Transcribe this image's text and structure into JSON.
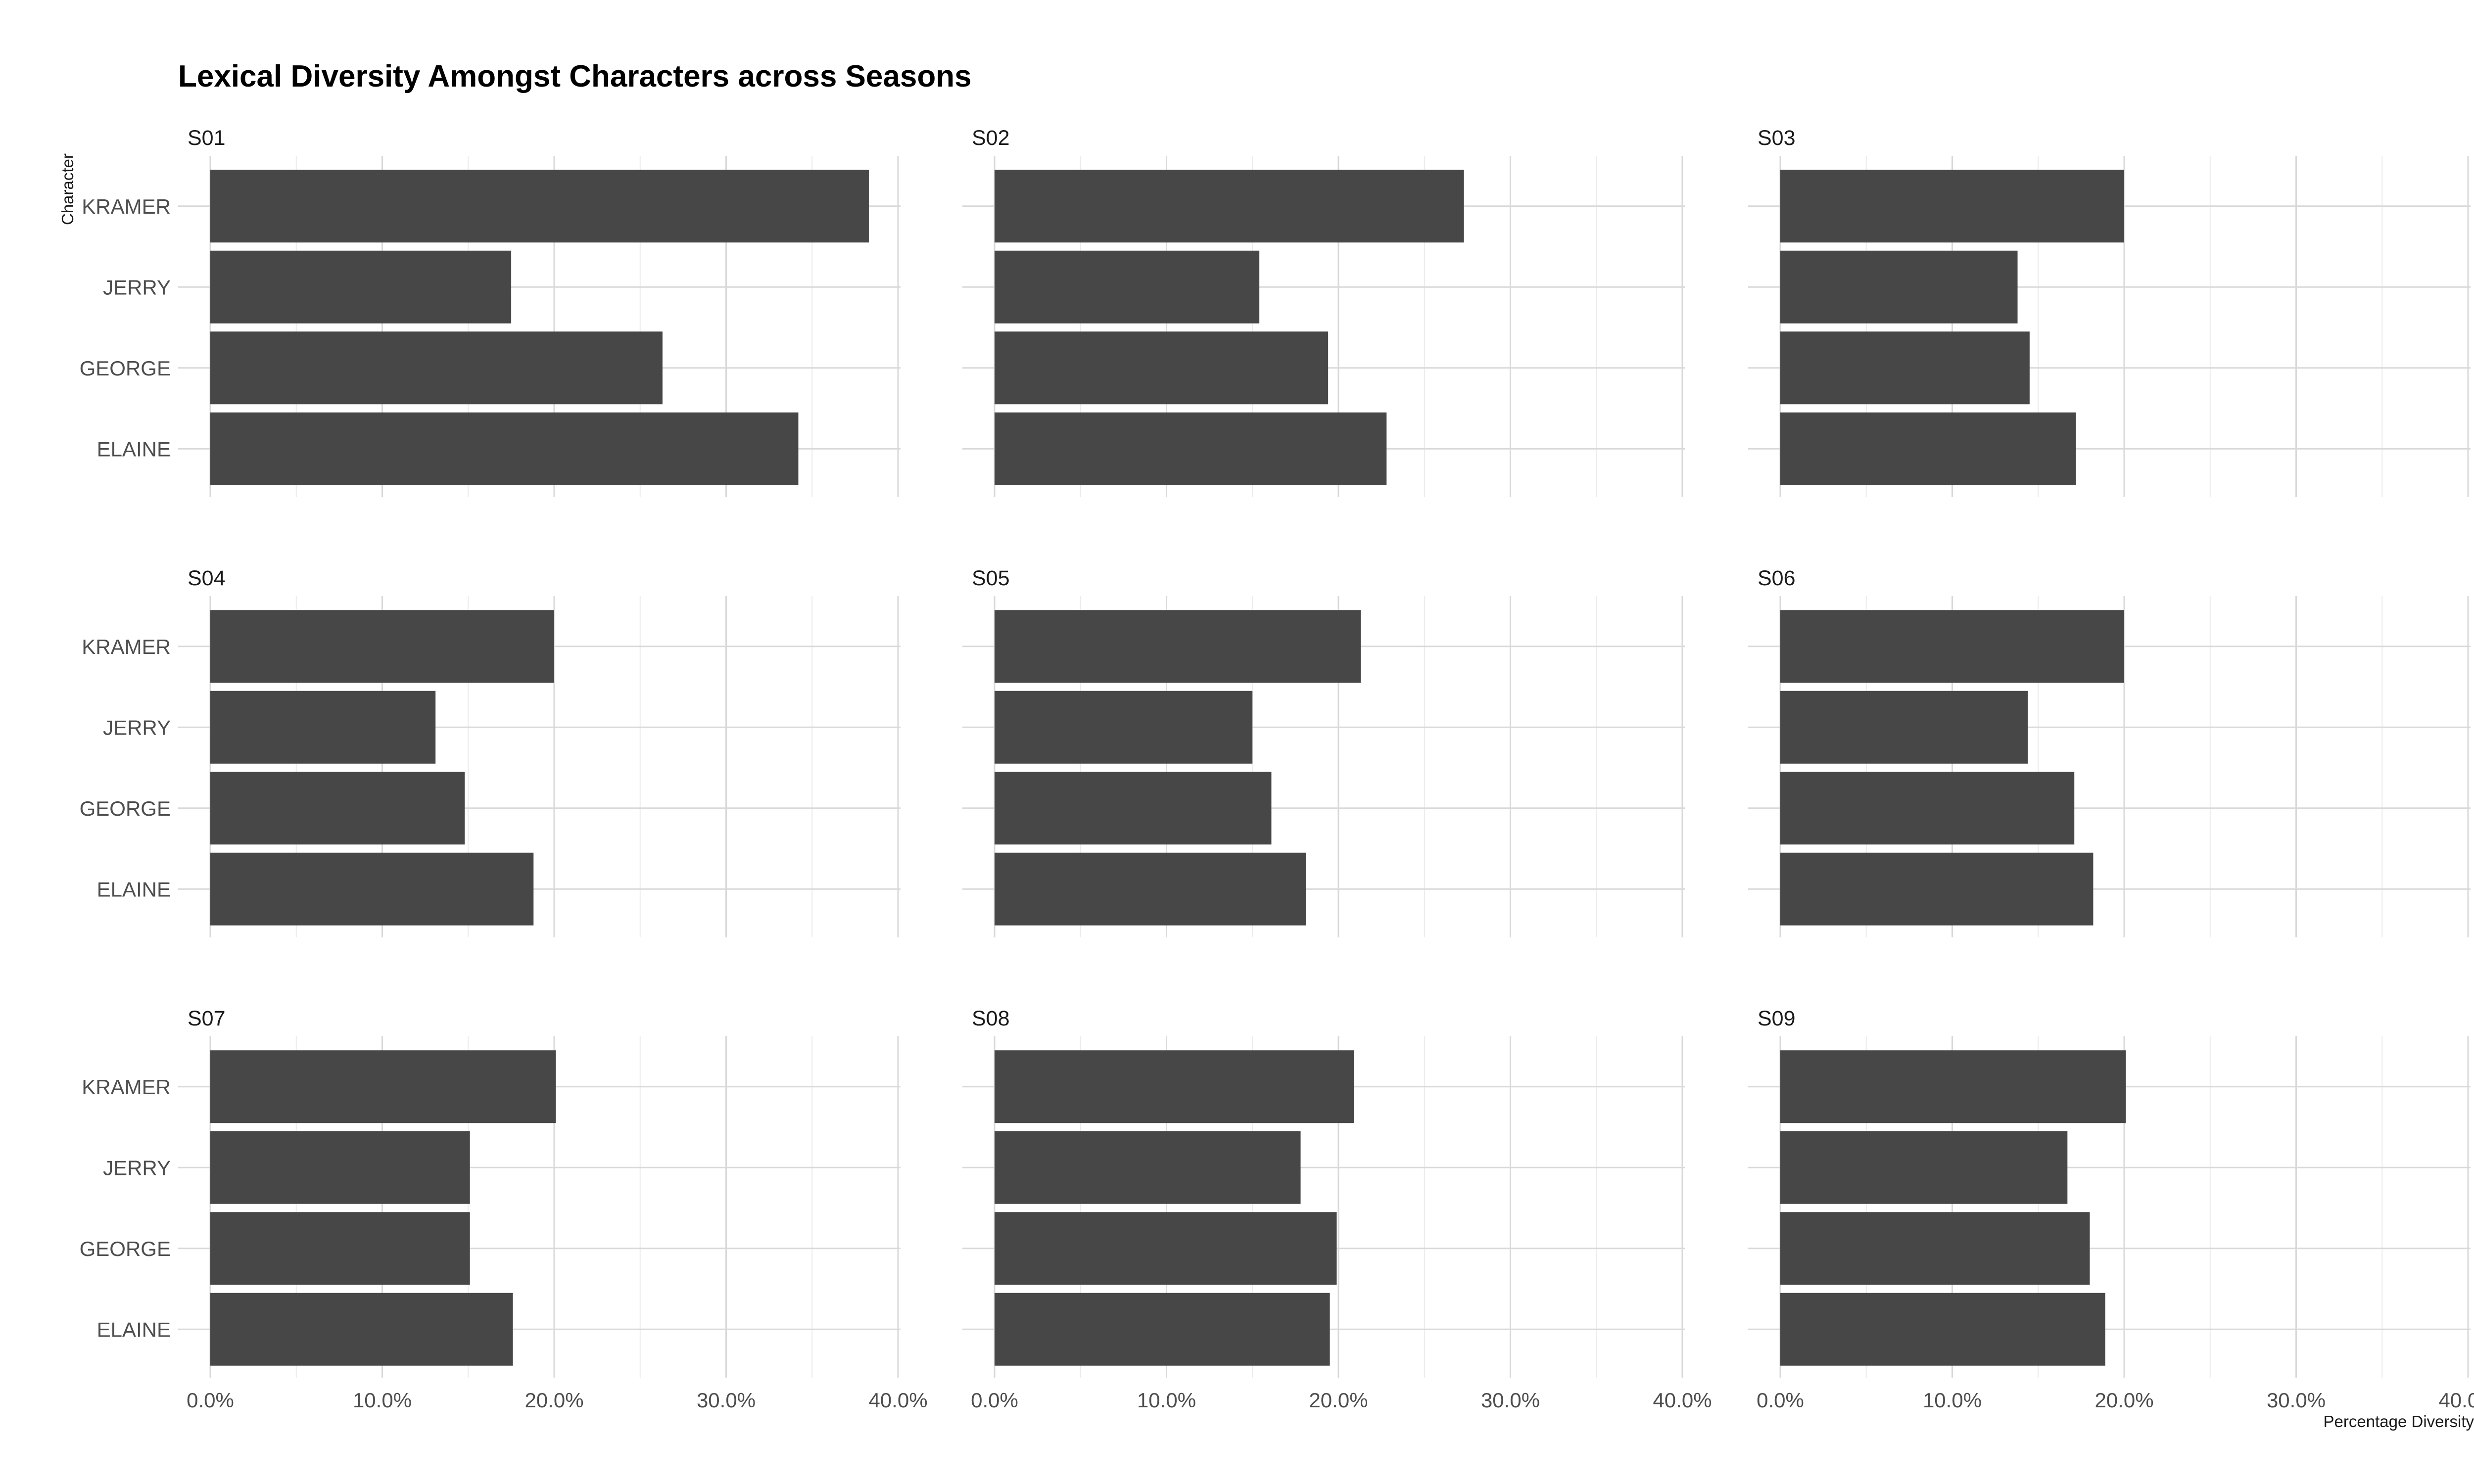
{
  "chart_data": {
    "type": "bar",
    "orientation": "horizontal",
    "title": "Lexical Diversity Amongst Characters across Seasons",
    "xlabel": "Percentage Diversity",
    "ylabel": "Character",
    "xlim": [
      0,
      40
    ],
    "x_ticks": [
      "0.0%",
      "10.0%",
      "20.0%",
      "30.0%",
      "40.0%"
    ],
    "grid": true,
    "categories": [
      "KRAMER",
      "JERRY",
      "GEORGE",
      "ELAINE"
    ],
    "facets": [
      {
        "name": "S01",
        "values": [
          38.3,
          17.5,
          26.3,
          34.2
        ]
      },
      {
        "name": "S02",
        "values": [
          27.3,
          15.4,
          19.4,
          22.8
        ]
      },
      {
        "name": "S03",
        "values": [
          20.0,
          13.8,
          14.5,
          17.2
        ]
      },
      {
        "name": "S04",
        "values": [
          20.0,
          13.1,
          14.8,
          18.8
        ]
      },
      {
        "name": "S05",
        "values": [
          21.3,
          15.0,
          16.1,
          18.1
        ]
      },
      {
        "name": "S06",
        "values": [
          20.0,
          14.4,
          17.1,
          18.2
        ]
      },
      {
        "name": "S07",
        "values": [
          20.1,
          15.1,
          15.1,
          17.6
        ]
      },
      {
        "name": "S08",
        "values": [
          20.9,
          17.8,
          19.9,
          19.5
        ]
      },
      {
        "name": "S09",
        "values": [
          20.1,
          16.7,
          18.0,
          18.9
        ]
      }
    ],
    "colors": {
      "bar": "#474747",
      "grid": "#d9d9d9",
      "grid_minor": "#ebebeb",
      "text": "#4d4d4d"
    }
  }
}
